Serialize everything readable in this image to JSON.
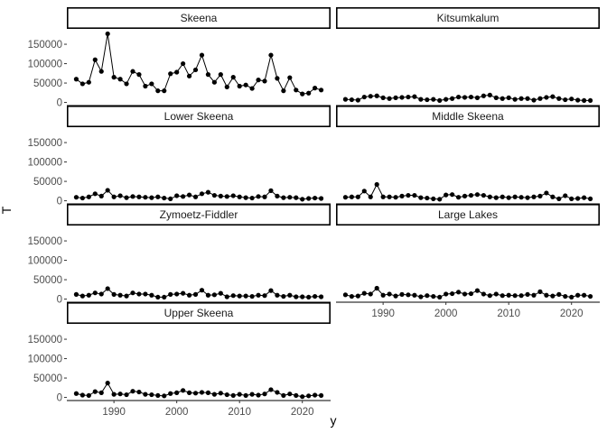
{
  "chart_data": {
    "type": "line",
    "facet_by": "panel",
    "facet_layout": {
      "ncol": 2,
      "nrow": 4,
      "scales": "fixed"
    },
    "xlabel": "y",
    "ylabel": "T",
    "xlim": [
      1982.5,
      2024.5
    ],
    "ylim": [
      -8000,
      185000
    ],
    "xticks": [
      1990,
      2000,
      2010,
      2020
    ],
    "yticks": [
      0,
      50000,
      100000,
      150000
    ],
    "ytick_labels": [
      "0",
      "50000",
      "100000",
      "150000"
    ],
    "markers": true,
    "grid": false,
    "x": [
      1984,
      1985,
      1986,
      1987,
      1988,
      1989,
      1990,
      1991,
      1992,
      1993,
      1994,
      1995,
      1996,
      1997,
      1998,
      1999,
      2000,
      2001,
      2002,
      2003,
      2004,
      2005,
      2006,
      2007,
      2008,
      2009,
      2010,
      2011,
      2012,
      2013,
      2014,
      2015,
      2016,
      2017,
      2018,
      2019,
      2020,
      2021,
      2022,
      2023
    ],
    "panels": [
      {
        "name": "Skeena",
        "values": [
          60000,
          48000,
          52000,
          110000,
          80000,
          177000,
          65000,
          60000,
          48000,
          80000,
          72000,
          42000,
          48000,
          30000,
          30000,
          74000,
          78000,
          100000,
          68000,
          84000,
          122000,
          72000,
          52000,
          72000,
          40000,
          65000,
          42000,
          45000,
          36000,
          58000,
          55000,
          122000,
          62000,
          30000,
          64000,
          32000,
          22000,
          24000,
          37000,
          32000
        ]
      },
      {
        "name": "Kitsumkalum",
        "values": [
          8000,
          7000,
          6000,
          14000,
          16000,
          17000,
          12000,
          10000,
          12000,
          13000,
          14000,
          15000,
          8000,
          7000,
          8000,
          5000,
          8000,
          10000,
          14000,
          13000,
          14000,
          12000,
          17000,
          19000,
          12000,
          10000,
          12000,
          8000,
          10000,
          10000,
          6000,
          10000,
          13000,
          15000,
          10000,
          7000,
          9000,
          6000,
          5000,
          5000
        ]
      },
      {
        "name": "Lower Skeena",
        "values": [
          9000,
          7000,
          10000,
          18000,
          12000,
          27000,
          10000,
          13000,
          8000,
          11000,
          10000,
          9000,
          8000,
          10000,
          7000,
          5000,
          13000,
          11000,
          15000,
          10000,
          18000,
          22000,
          14000,
          12000,
          11000,
          13000,
          10000,
          8000,
          7000,
          11000,
          10000,
          26000,
          12000,
          8000,
          9000,
          8000,
          4000,
          6000,
          7000,
          6000
        ]
      },
      {
        "name": "Middle Skeena",
        "values": [
          9000,
          10000,
          10000,
          25000,
          10000,
          42000,
          10000,
          10000,
          9000,
          12000,
          14000,
          14000,
          8000,
          7000,
          5000,
          4000,
          15000,
          16000,
          9000,
          12000,
          14000,
          16000,
          14000,
          10000,
          8000,
          10000,
          8000,
          10000,
          9000,
          8000,
          10000,
          12000,
          20000,
          10000,
          5000,
          13000,
          5000,
          6000,
          8000,
          5000
        ]
      },
      {
        "name": "Zymoetz-Fiddler",
        "values": [
          12000,
          8000,
          10000,
          16000,
          13000,
          27000,
          12000,
          10000,
          8000,
          16000,
          13000,
          13000,
          10000,
          5000,
          5000,
          12000,
          13000,
          15000,
          10000,
          12000,
          23000,
          10000,
          11000,
          15000,
          6000,
          9000,
          8000,
          8000,
          7000,
          10000,
          9000,
          22000,
          10000,
          7000,
          10000,
          6000,
          6000,
          5000,
          7000,
          6000
        ]
      },
      {
        "name": "Large Lakes",
        "values": [
          11000,
          7000,
          8000,
          15000,
          13000,
          28000,
          10000,
          13000,
          8000,
          12000,
          11000,
          10000,
          6000,
          9000,
          7000,
          5000,
          13000,
          14000,
          18000,
          13000,
          14000,
          22000,
          13000,
          9000,
          13000,
          9000,
          10000,
          9000,
          9000,
          12000,
          10000,
          19000,
          10000,
          8000,
          12000,
          7000,
          5000,
          10000,
          10000,
          7000
        ]
      },
      {
        "name": "Upper Skeena",
        "values": [
          10000,
          6000,
          5000,
          15000,
          12000,
          37000,
          8000,
          9000,
          7000,
          16000,
          14000,
          8000,
          7000,
          5000,
          4000,
          10000,
          12000,
          18000,
          12000,
          11000,
          13000,
          12000,
          8000,
          11000,
          7000,
          5000,
          8000,
          5000,
          8000,
          6000,
          9000,
          20000,
          13000,
          5000,
          9000,
          5000,
          2000,
          4000,
          6000,
          5000
        ]
      }
    ]
  }
}
